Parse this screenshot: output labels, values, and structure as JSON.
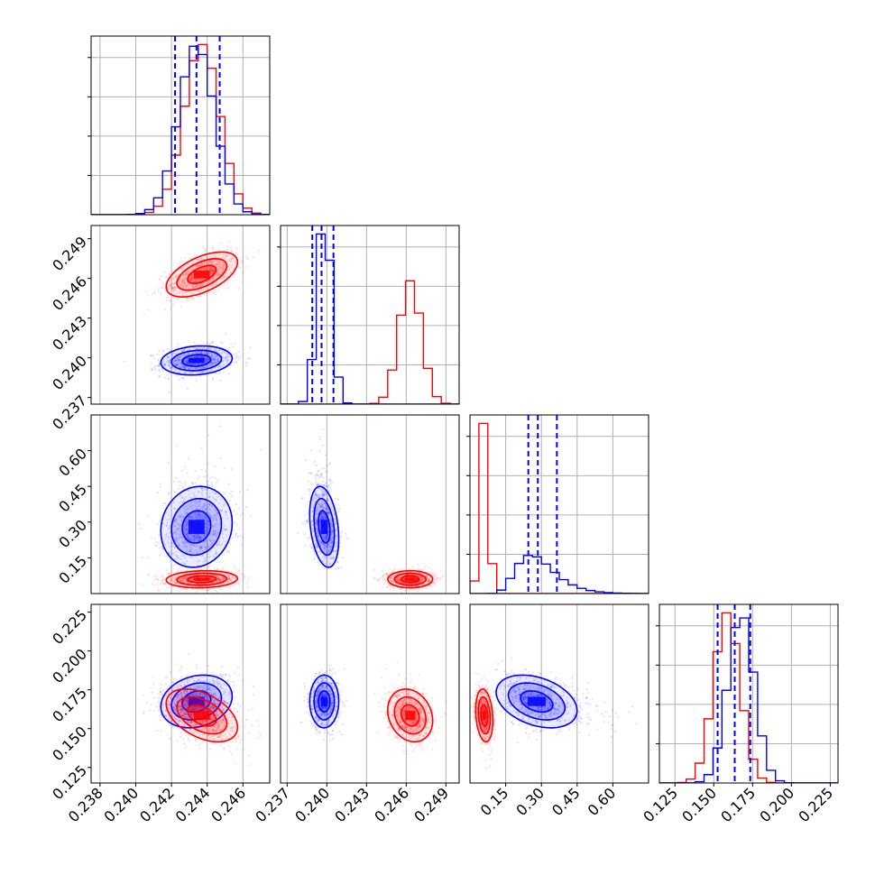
{
  "chart_data": {
    "type": "corner",
    "parameters": [
      {
        "range": [
          0.2375,
          0.2475
        ],
        "ticks": [
          0.238,
          0.24,
          0.242,
          0.244,
          0.246
        ],
        "tick_labels": [
          "0.238",
          "0.240",
          "0.242",
          "0.244",
          "0.246"
        ]
      },
      {
        "range": [
          0.2365,
          0.25
        ],
        "ticks": [
          0.237,
          0.24,
          0.243,
          0.246,
          0.249
        ],
        "tick_labels": [
          "0.237",
          "0.240",
          "0.243",
          "0.246",
          "0.249"
        ]
      },
      {
        "range": [
          0.0,
          0.75
        ],
        "ticks": [
          0.15,
          0.3,
          0.45,
          0.6
        ],
        "tick_labels": [
          "0.15",
          "0.30",
          "0.45",
          "0.60"
        ]
      },
      {
        "range": [
          0.115,
          0.23
        ],
        "ticks": [
          0.125,
          0.15,
          0.175,
          0.2,
          0.225
        ],
        "tick_labels": [
          "0.125",
          "0.150",
          "0.175",
          "0.200",
          "0.225"
        ]
      }
    ],
    "series": [
      {
        "color": "#0000ff",
        "means": [
          0.2434,
          0.2398,
          0.28,
          0.1675
        ],
        "sigmas": [
          0.001,
          0.00055,
          0.085,
          0.0085
        ],
        "quantiles": [
          [
            0.2422,
            0.2434,
            0.2447
          ],
          [
            0.2389,
            0.2396,
            0.2405
          ],
          [
            0.245,
            0.285,
            0.365
          ],
          [
            0.1525,
            0.1635,
            0.1735
          ]
        ]
      },
      {
        "color": "#ff0000",
        "means": [
          0.2437,
          0.2463,
          0.06,
          0.1585
        ],
        "sigmas": [
          0.001,
          0.00085,
          0.018,
          0.0085
        ]
      }
    ],
    "grid": true,
    "quantile_line_style": "dashed"
  }
}
